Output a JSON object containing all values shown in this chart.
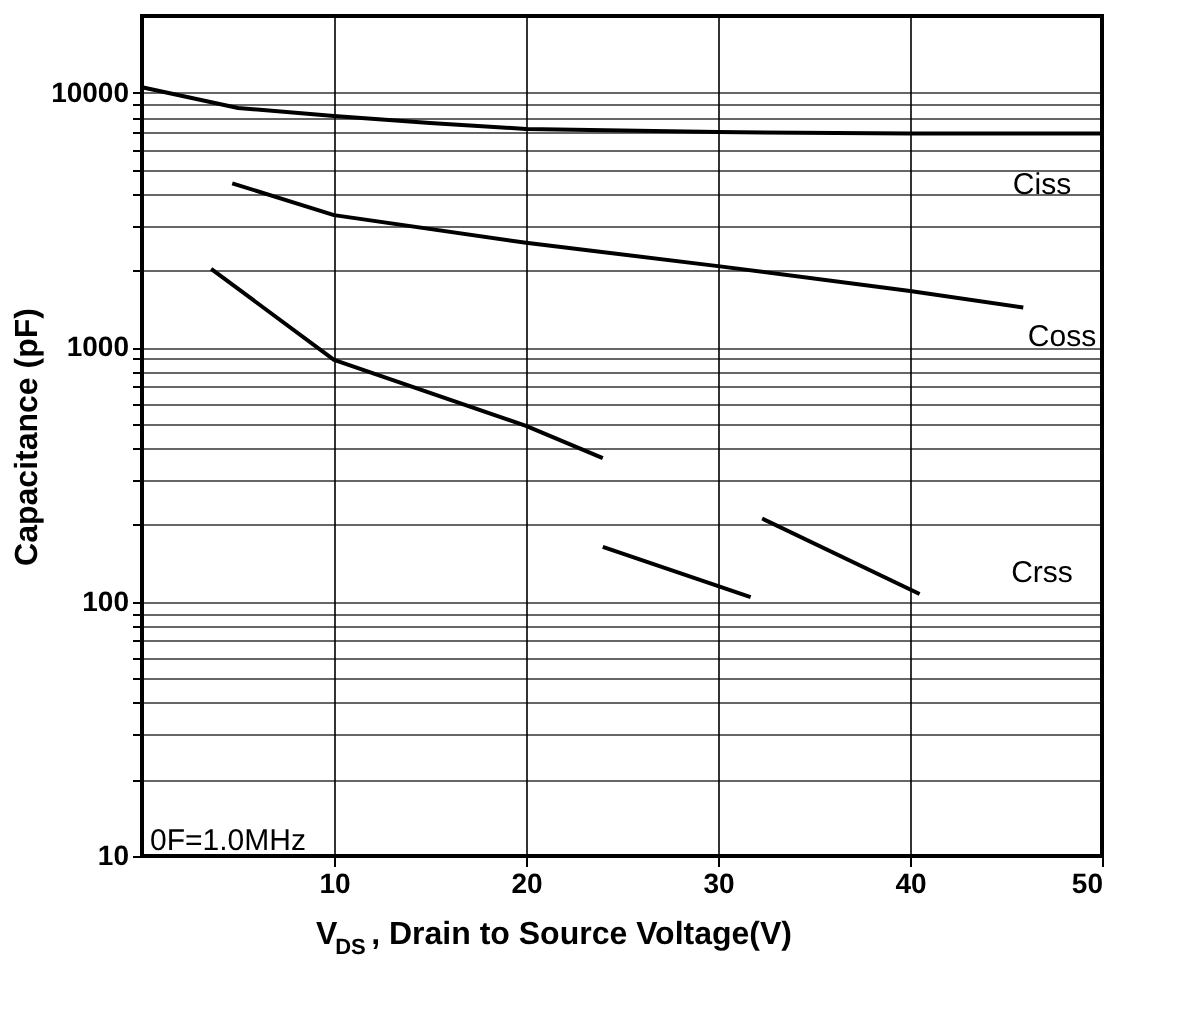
{
  "chart_data": {
    "type": "line",
    "xlabel": "V$_{DS}$ , Drain to Source Voltage(V)",
    "ylabel": "Capacitance (pF)",
    "log": "y",
    "grid": true,
    "marker": "none",
    "line_style": "solid",
    "xlim": [
      0,
      50
    ],
    "xticks": [
      10,
      20,
      30,
      40,
      50
    ],
    "ylim": [
      10,
      20000
    ],
    "yticks": [
      10,
      {
        "value": 20,
        "label": null
      },
      {
        "value": 30,
        "label": null
      },
      {
        "value": 40,
        "label": null
      },
      {
        "value": 50,
        "label": null
      },
      {
        "value": 60,
        "label": null
      },
      {
        "value": 70,
        "label": null
      },
      {
        "value": 80,
        "label": null
      },
      {
        "value": 90,
        "label": null
      },
      100,
      {
        "value": 200,
        "label": null
      },
      {
        "value": 300,
        "label": null
      },
      {
        "value": 400,
        "label": null
      },
      {
        "value": 500,
        "label": null
      },
      {
        "value": 600,
        "label": null
      },
      {
        "value": 700,
        "label": null
      },
      {
        "value": 800,
        "label": null
      },
      {
        "value": 900,
        "label": null
      },
      1000,
      {
        "value": 2000,
        "label": null
      },
      {
        "value": 3000,
        "label": null
      },
      {
        "value": 4000,
        "label": null
      },
      {
        "value": 5000,
        "label": null
      },
      {
        "value": 6000,
        "label": null
      },
      {
        "value": 7000,
        "label": null
      },
      {
        "value": 8000,
        "label": null
      },
      {
        "value": 9000,
        "label": null
      },
      10000
    ],
    "series": [
      {
        "color": "#000000",
        "x": [
          0,
          5,
          10,
          15,
          20,
          30,
          40,
          50
        ],
        "values": [
          10500,
          8700,
          8100,
          7600,
          7200,
          7000,
          6900,
          6900
        ]
      },
      {
        "color": "#000000",
        "x": [
          4.7,
          10,
          20,
          30,
          40,
          45.9
        ],
        "values": [
          4400,
          3300,
          2570,
          2080,
          1660,
          1430
        ]
      },
      {
        "color": "#000000",
        "x": [
          3.6,
          10,
          20,
          24
        ],
        "values": [
          2030,
          890,
          490,
          366
        ]
      },
      {
        "color": "#000000",
        "x": [
          24,
          31.7
        ],
        "values": [
          164,
          104
        ]
      },
      {
        "color": "#000000",
        "x": [
          32.3,
          40.5
        ],
        "values": [
          212,
          107
        ]
      }
    ],
    "annotations": [
      "Ciss",
      "Coss",
      "Crss",
      "0F=1.0MHz"
    ]
  }
}
